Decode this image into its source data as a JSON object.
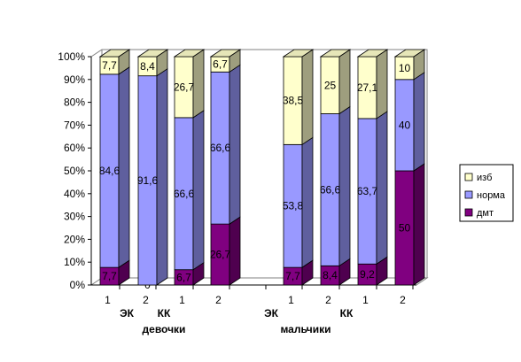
{
  "chart_data": {
    "type": "bar",
    "stacked": "percent",
    "three_d": true,
    "ylim": [
      0,
      100
    ],
    "y_ticks": [
      "0%",
      "10%",
      "20%",
      "30%",
      "40%",
      "50%",
      "60%",
      "70%",
      "80%",
      "90%",
      "100%"
    ],
    "categories": [
      "1",
      "2",
      "1",
      "2",
      "1",
      "2",
      "1",
      "2"
    ],
    "subgroup_labels": [
      "ЭК",
      "КК",
      "ЭК",
      "КК"
    ],
    "group_labels": [
      "девочки",
      "мальчики"
    ],
    "series": [
      {
        "name": "дмт",
        "color": "#800080",
        "values": [
          7.7,
          0,
          6.7,
          26.7,
          7.7,
          8.4,
          9.2,
          50
        ]
      },
      {
        "name": "норма",
        "color": "#9999ff",
        "values": [
          84.6,
          91.6,
          66.6,
          66.6,
          53.8,
          66.6,
          63.7,
          40
        ]
      },
      {
        "name": "изб",
        "color": "#ffffcc",
        "values": [
          7.7,
          8.4,
          26.7,
          6.7,
          38.5,
          25,
          27.1,
          10
        ]
      }
    ],
    "data_labels": [
      [
        "7,7",
        "0",
        "6,7",
        "26,7",
        "7,7",
        "8,4",
        "9,2",
        "50"
      ],
      [
        "84,6",
        "91,6",
        "66,6",
        "66,6",
        "53,8",
        "66,6",
        "63,7",
        "40"
      ],
      [
        "7,7",
        "8,4",
        "26,7",
        "6,7",
        "38,5",
        "25",
        "27,1",
        "10"
      ]
    ],
    "legend": [
      "изб",
      "норма",
      "дмт"
    ],
    "legend_position": "right",
    "grid": false
  }
}
